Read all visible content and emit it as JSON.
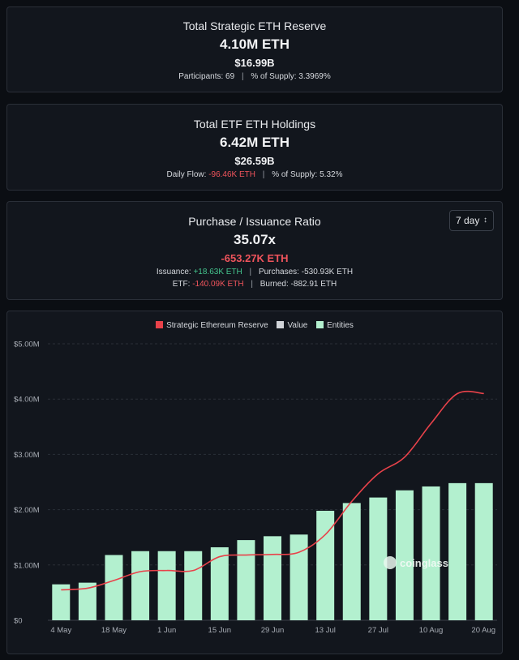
{
  "reserve": {
    "title": "Total Strategic ETH Reserve",
    "main": "4.10M ETH",
    "usd": "$16.99B",
    "participants_label": "Participants:",
    "participants_value": "69",
    "supply_label": "% of Supply:",
    "supply_value": "3.3969%"
  },
  "etf": {
    "title": "Total ETF ETH Holdings",
    "main": "6.42M ETH",
    "usd": "$26.59B",
    "flow_label": "Daily Flow:",
    "flow_value": "-96.46K ETH",
    "supply_label": "% of Supply:",
    "supply_value": "5.32%"
  },
  "ratio": {
    "title": "Purchase / Issuance Ratio",
    "main": "35.07x",
    "net": "-653.27K ETH",
    "issuance_label": "Issuance:",
    "issuance_value": "+18.63K ETH",
    "purchases_label": "Purchases:",
    "purchases_value": "-530.93K ETH",
    "etf_label": "ETF:",
    "etf_value": "-140.09K ETH",
    "burned_label": "Burned:",
    "burned_value": "-882.91 ETH",
    "period_selected": "7 day"
  },
  "colors": {
    "line": "#e8424a",
    "bar": "#b3f0cf",
    "value_swatch": "#d0d3d8",
    "green": "#45c58e",
    "red": "#f0545c"
  },
  "watermark": "coinglass",
  "chart_data": {
    "type": "bar",
    "title": "",
    "legend": [
      "Strategic Ethereum Reserve",
      "Value",
      "Entities"
    ],
    "legend_position": "top-center",
    "y_ticks": [
      "$0",
      "$1.00M",
      "$2.00M",
      "$3.00M",
      "$4.00M",
      "$5.00M"
    ],
    "ylim": [
      0,
      5000000
    ],
    "x_tick_labels": [
      "4 May",
      "18 May",
      "1 Jun",
      "15 Jun",
      "29 Jun",
      "13 Jul",
      "27 Jul",
      "10 Aug",
      "20 Aug"
    ],
    "x_tick_positions": [
      0,
      2,
      4,
      6,
      8,
      10,
      12,
      14,
      16
    ],
    "grid": true,
    "series": [
      {
        "name": "Entities",
        "type": "bar",
        "values": [
          650000,
          680000,
          1180000,
          1250000,
          1250000,
          1250000,
          1320000,
          1450000,
          1520000,
          1550000,
          1980000,
          2120000,
          2220000,
          2350000,
          2420000,
          2480000,
          2480000
        ]
      },
      {
        "name": "Strategic Ethereum Reserve",
        "type": "line",
        "values": [
          550000,
          580000,
          720000,
          880000,
          900000,
          900000,
          1150000,
          1180000,
          1190000,
          1230000,
          1550000,
          2150000,
          2650000,
          2950000,
          3560000,
          4100000,
          4100000
        ]
      }
    ]
  }
}
